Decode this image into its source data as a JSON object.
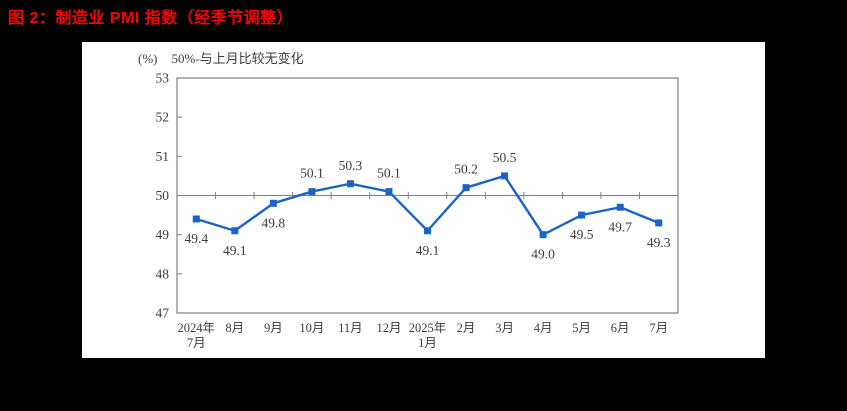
{
  "page": {
    "title": "图 2：制造业 PMI 指数（经季节调整）",
    "title_color": "#FF0000",
    "background_color": "#000000"
  },
  "chart_data": {
    "type": "line",
    "title": "图 2：制造业 PMI 指数（经季节调整）",
    "unit_label": "(%)",
    "reference_note": "50%-与上月比较无变化",
    "categories": [
      "2024年\n7月",
      "8月",
      "9月",
      "10月",
      "11月",
      "12月",
      "2025年\n1月",
      "2月",
      "3月",
      "4月",
      "5月",
      "6月",
      "7月"
    ],
    "values": [
      49.4,
      49.1,
      49.8,
      50.1,
      50.3,
      50.1,
      49.1,
      50.2,
      50.5,
      49.0,
      49.5,
      49.7,
      49.3
    ],
    "data_labels": [
      "49.4",
      "49.1",
      "49.8",
      "50.1",
      "50.3",
      "50.1",
      "49.1",
      "50.2",
      "50.5",
      "49.0",
      "49.5",
      "49.7",
      "49.3"
    ],
    "label_positions": [
      "below",
      "below",
      "below",
      "above",
      "above",
      "above",
      "below",
      "above",
      "above",
      "below",
      "below",
      "below",
      "below"
    ],
    "ylim": [
      47,
      53
    ],
    "yticks": [
      47,
      48,
      49,
      50,
      51,
      52,
      53
    ],
    "reference_line": 50,
    "grid": "off",
    "legend": "none",
    "line_color": "#1C63C6",
    "marker": "square",
    "axis_color": "#808080",
    "label_color": "#3d3d3d",
    "xlabel": "",
    "ylabel": "(%)"
  }
}
